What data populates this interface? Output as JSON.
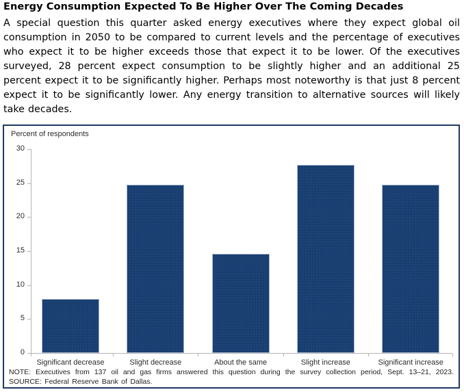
{
  "page": {
    "title": "Energy Consumption Expected To Be Higher Over The Coming Decades",
    "paragraph": "A special question this quarter asked energy executives where they expect global oil consumption in 2050 to be compared to current levels and the percentage of executives who expect it to be higher exceeds those that expect it to be lower. Of the executives surveyed, 28 percent expect consumption to be slightly higher and an additional 25 percent expect it to be significantly higher. Perhaps most noteworthy is that just 8 percent expect it to be significantly lower. Any energy transition to alternative sources will likely take decades."
  },
  "chart_data": {
    "type": "bar",
    "title": "",
    "ylabel": "Percent of respondents",
    "xlabel": "",
    "categories": [
      "Significant decrease",
      "Slight decrease",
      "About the same",
      "Slight increase",
      "Significant increase"
    ],
    "values": [
      8.0,
      24.8,
      14.6,
      27.7,
      24.8
    ],
    "ylim": [
      0,
      30
    ],
    "yticks": [
      0,
      5,
      10,
      15,
      20,
      25,
      30
    ],
    "grid": false,
    "legend": "none",
    "note": "NOTE: Executives from 137 oil and gas firms answered this question during the survey collection period, Sept. 13–21, 2023.",
    "source": "SOURCE: Federal Reserve Bank of Dallas.",
    "colors": {
      "bar_fill": "#1c4177",
      "bar_edge": "#a9b7d1",
      "box_border": "#203864",
      "axis_line": "#b3b3b3",
      "label_text": "#2b2b2b"
    }
  }
}
